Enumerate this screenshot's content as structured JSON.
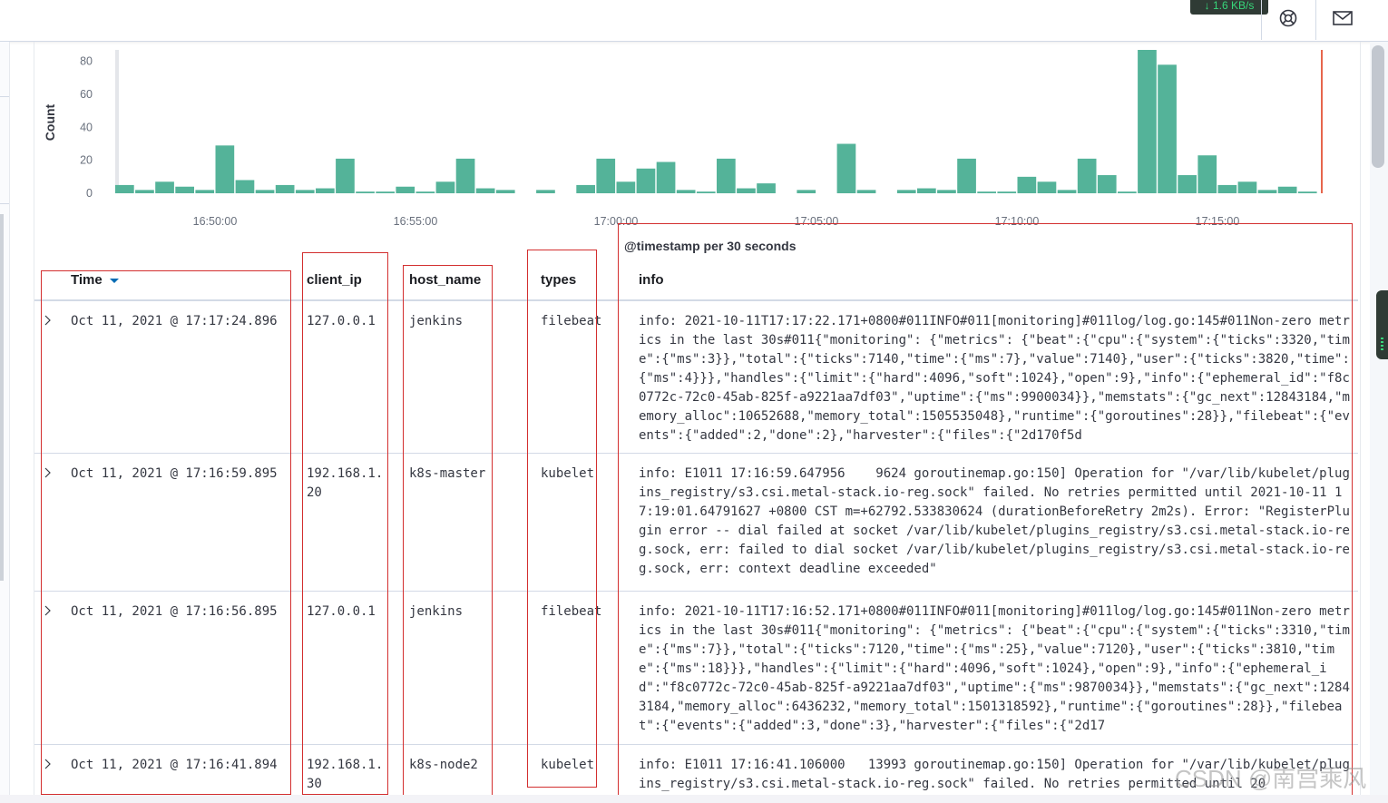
{
  "topbar": {
    "net_speed": "↓ 1.6 KB/s",
    "help_icon": "help-globe-icon",
    "mail_icon": "mail-icon"
  },
  "chart_data": {
    "type": "bar",
    "ylabel": "Count",
    "xlabel": "@timestamp per 30 seconds",
    "ylim": [
      0,
      87
    ],
    "yticks": [
      "0",
      "20",
      "40",
      "60",
      "80"
    ],
    "xticks": [
      "16:50:00",
      "16:55:00",
      "17:00:00",
      "17:05:00",
      "17:10:00",
      "17:15:00"
    ],
    "values": [
      5,
      2,
      7,
      4,
      2,
      29,
      8,
      2,
      5,
      2,
      3,
      21,
      1,
      1,
      4,
      1,
      7,
      21,
      3,
      2,
      0,
      2,
      0,
      5,
      21,
      7,
      15,
      19,
      2,
      1,
      21,
      3,
      6,
      0,
      2,
      0,
      30,
      2,
      0,
      2,
      3,
      2,
      21,
      1,
      1,
      10,
      7,
      2,
      21,
      11,
      1,
      87,
      78,
      11,
      23,
      5,
      7,
      2,
      4,
      1
    ],
    "grid": false,
    "bar_color": "#54b399",
    "marker_color": "#e7664c"
  },
  "table": {
    "headers": {
      "time": "Time",
      "client_ip": "client_ip",
      "host_name": "host_name",
      "types": "types",
      "info": "info"
    },
    "rows": [
      {
        "time": "Oct 11, 2021 @ 17:17:24.896",
        "client_ip": "127.0.0.1",
        "host_name": "jenkins",
        "types": "filebeat",
        "info": "info: 2021-10-11T17:17:22.171+0800#011INFO#011[monitoring]#011log/log.go:145#011Non-zero metrics in the last 30s#011{\"monitoring\": {\"metrics\": {\"beat\":{\"cpu\":{\"system\":{\"ticks\":3320,\"time\":{\"ms\":3}},\"total\":{\"ticks\":7140,\"time\":{\"ms\":7},\"value\":7140},\"user\":{\"ticks\":3820,\"time\":{\"ms\":4}}},\"handles\":{\"limit\":{\"hard\":4096,\"soft\":1024},\"open\":9},\"info\":{\"ephemeral_id\":\"f8c0772c-72c0-45ab-825f-a9221aa7df03\",\"uptime\":{\"ms\":9900034}},\"memstats\":{\"gc_next\":12843184,\"memory_alloc\":10652688,\"memory_total\":1505535048},\"runtime\":{\"goroutines\":28}},\"filebeat\":{\"events\":{\"added\":2,\"done\":2},\"harvester\":{\"files\":{\"2d170f5d"
      },
      {
        "time": "Oct 11, 2021 @ 17:16:59.895",
        "client_ip": "192.168.1.20",
        "host_name": "k8s-master",
        "types": "kubelet",
        "info": "info: E1011 17:16:59.647956    9624 goroutinemap.go:150] Operation for \"/var/lib/kubelet/plugins_registry/s3.csi.metal-stack.io-reg.sock\" failed. No retries permitted until 2021-10-11 17:19:01.64791627 +0800 CST m=+62792.533830624 (durationBeforeRetry 2m2s). Error: \"RegisterPlugin error -- dial failed at socket /var/lib/kubelet/plugins_registry/s3.csi.metal-stack.io-reg.sock, err: failed to dial socket /var/lib/kubelet/plugins_registry/s3.csi.metal-stack.io-reg.sock, err: context deadline exceeded\""
      },
      {
        "time": "Oct 11, 2021 @ 17:16:56.895",
        "client_ip": "127.0.0.1",
        "host_name": "jenkins",
        "types": "filebeat",
        "info": "info: 2021-10-11T17:16:52.171+0800#011INFO#011[monitoring]#011log/log.go:145#011Non-zero metrics in the last 30s#011{\"monitoring\": {\"metrics\": {\"beat\":{\"cpu\":{\"system\":{\"ticks\":3310,\"time\":{\"ms\":7}},\"total\":{\"ticks\":7120,\"time\":{\"ms\":25},\"value\":7120},\"user\":{\"ticks\":3810,\"time\":{\"ms\":18}}},\"handles\":{\"limit\":{\"hard\":4096,\"soft\":1024},\"open\":9},\"info\":{\"ephemeral_id\":\"f8c0772c-72c0-45ab-825f-a9221aa7df03\",\"uptime\":{\"ms\":9870034}},\"memstats\":{\"gc_next\":12843184,\"memory_alloc\":6436232,\"memory_total\":1501318592},\"runtime\":{\"goroutines\":28}},\"filebeat\":{\"events\":{\"added\":3,\"done\":3},\"harvester\":{\"files\":{\"2d17"
      },
      {
        "time": "Oct 11, 2021 @ 17:16:41.894",
        "client_ip": "192.168.1.30",
        "host_name": "k8s-node2",
        "types": "kubelet",
        "info": "info: E1011 17:16:41.106000   13993 goroutinemap.go:150] Operation for \"/var/lib/kubelet/plugins_registry/s3.csi.metal-stack.io-reg.sock\" failed. No retries permitted until 20"
      }
    ]
  },
  "watermark": "CSDN @南宫乘风"
}
